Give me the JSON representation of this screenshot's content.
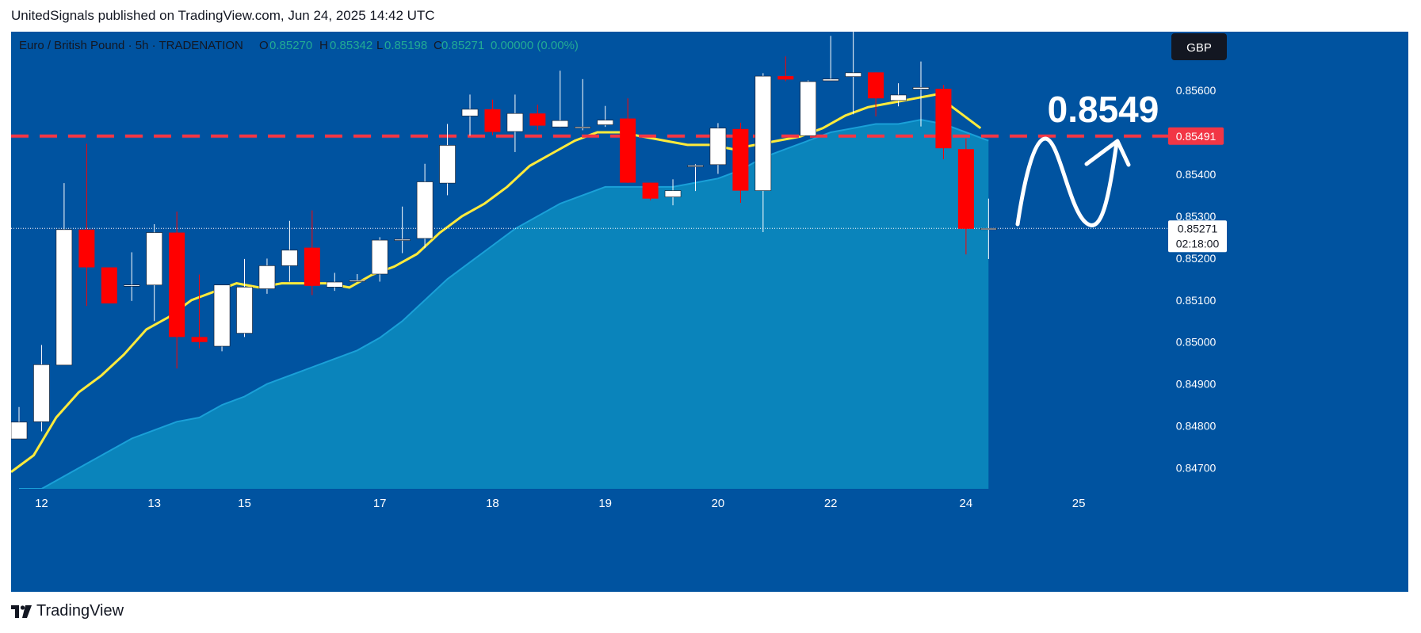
{
  "header": {
    "published_text": "UnitedSignals published on TradingView.com, Jun 24, 2025 14:42 UTC"
  },
  "legend": {
    "symbol_text": "Euro / British Pound · 5h · TRADENATION",
    "o_label": "O",
    "o_value": "0.85270",
    "h_label": "H",
    "h_value": "0.85342",
    "l_label": "L",
    "l_value": "0.85198",
    "c_label": "C",
    "c_value": "0.85271",
    "change": "0.00000 (0.00%)"
  },
  "currency_button": "GBP",
  "annotation_text": "0.8549",
  "level_label": "0.85491",
  "last_price_label": "0.85271",
  "countdown_label": "02:18:00",
  "footer": {
    "brand": "TradingView"
  },
  "colors": {
    "background": "#0053a0",
    "area_fill": "#0a84bb",
    "up_candle": "#ffffff",
    "down_candle": "#ff0000",
    "ema": "#ffeb3b",
    "level_line": "#f23645",
    "axis_text": "#ffffff"
  },
  "chart_data": {
    "type": "candlestick",
    "symbol": "Euro / British Pound",
    "interval": "5h",
    "ylim": [
      0.8465,
      0.8574
    ],
    "y_ticks": [
      "0.85600",
      "0.85500",
      "0.85400",
      "0.85300",
      "0.85200",
      "0.85100",
      "0.85000",
      "0.84900",
      "0.84800",
      "0.84700"
    ],
    "x_labels": [
      "12",
      "13",
      "15",
      "17",
      "18",
      "19",
      "20",
      "22",
      "24",
      "25"
    ],
    "horizontal_level": 0.85491,
    "last_price": 0.85271,
    "candles": [
      {
        "o": 0.84769,
        "h": 0.84845,
        "l": 0.84769,
        "c": 0.84809
      },
      {
        "o": 0.8481,
        "h": 0.84993,
        "l": 0.84787,
        "c": 0.84946
      },
      {
        "o": 0.84945,
        "h": 0.85379,
        "l": 0.84945,
        "c": 0.85268
      },
      {
        "o": 0.85268,
        "h": 0.85473,
        "l": 0.85086,
        "c": 0.85178
      },
      {
        "o": 0.85178,
        "h": 0.85178,
        "l": 0.85092,
        "c": 0.85092
      },
      {
        "o": 0.85136,
        "h": 0.85214,
        "l": 0.85098,
        "c": 0.85136
      },
      {
        "o": 0.85136,
        "h": 0.85281,
        "l": 0.8505,
        "c": 0.85261
      },
      {
        "o": 0.85261,
        "h": 0.85311,
        "l": 0.84937,
        "c": 0.85012
      },
      {
        "o": 0.85012,
        "h": 0.85161,
        "l": 0.84985,
        "c": 0.85
      },
      {
        "o": 0.8499,
        "h": 0.85135,
        "l": 0.84978,
        "c": 0.85136
      },
      {
        "o": 0.85021,
        "h": 0.85198,
        "l": 0.85012,
        "c": 0.85131
      },
      {
        "o": 0.85127,
        "h": 0.85199,
        "l": 0.85115,
        "c": 0.85182
      },
      {
        "o": 0.85182,
        "h": 0.85289,
        "l": 0.85144,
        "c": 0.85219
      },
      {
        "o": 0.85225,
        "h": 0.85314,
        "l": 0.85112,
        "c": 0.85134
      },
      {
        "o": 0.85131,
        "h": 0.85165,
        "l": 0.85122,
        "c": 0.85143
      },
      {
        "o": 0.85147,
        "h": 0.85162,
        "l": 0.85144,
        "c": 0.85147
      },
      {
        "o": 0.85162,
        "h": 0.8525,
        "l": 0.85144,
        "c": 0.85243
      },
      {
        "o": 0.85245,
        "h": 0.85323,
        "l": 0.85212,
        "c": 0.85245
      },
      {
        "o": 0.85247,
        "h": 0.85425,
        "l": 0.85224,
        "c": 0.85382
      },
      {
        "o": 0.85379,
        "h": 0.8552,
        "l": 0.8535,
        "c": 0.85469
      },
      {
        "o": 0.85539,
        "h": 0.8559,
        "l": 0.85492,
        "c": 0.85555
      },
      {
        "o": 0.85555,
        "h": 0.85578,
        "l": 0.85493,
        "c": 0.85501
      },
      {
        "o": 0.85502,
        "h": 0.8559,
        "l": 0.85453,
        "c": 0.85545
      },
      {
        "o": 0.85545,
        "h": 0.85566,
        "l": 0.85505,
        "c": 0.85516
      },
      {
        "o": 0.85513,
        "h": 0.85647,
        "l": 0.85512,
        "c": 0.85528
      },
      {
        "o": 0.85513,
        "h": 0.85627,
        "l": 0.85505,
        "c": 0.85513
      },
      {
        "o": 0.85518,
        "h": 0.85563,
        "l": 0.85513,
        "c": 0.85529
      },
      {
        "o": 0.85533,
        "h": 0.85581,
        "l": 0.85379,
        "c": 0.8538
      },
      {
        "o": 0.8538,
        "h": 0.8538,
        "l": 0.85338,
        "c": 0.85342
      },
      {
        "o": 0.85346,
        "h": 0.85388,
        "l": 0.85326,
        "c": 0.85361
      },
      {
        "o": 0.85421,
        "h": 0.85424,
        "l": 0.8536,
        "c": 0.85421
      },
      {
        "o": 0.85423,
        "h": 0.85522,
        "l": 0.85401,
        "c": 0.8551
      },
      {
        "o": 0.85508,
        "h": 0.85523,
        "l": 0.85332,
        "c": 0.85361
      },
      {
        "o": 0.85361,
        "h": 0.85641,
        "l": 0.85262,
        "c": 0.85634
      },
      {
        "o": 0.85634,
        "h": 0.85681,
        "l": 0.85622,
        "c": 0.85626
      },
      {
        "o": 0.85492,
        "h": 0.85624,
        "l": 0.85492,
        "c": 0.85621
      },
      {
        "o": 0.85623,
        "h": 0.8573,
        "l": 0.85623,
        "c": 0.85627
      },
      {
        "o": 0.85633,
        "h": 0.85754,
        "l": 0.85543,
        "c": 0.85642
      },
      {
        "o": 0.85643,
        "h": 0.85643,
        "l": 0.85538,
        "c": 0.85581
      },
      {
        "o": 0.85576,
        "h": 0.85617,
        "l": 0.85562,
        "c": 0.85589
      },
      {
        "o": 0.85603,
        "h": 0.85669,
        "l": 0.85514,
        "c": 0.85607
      },
      {
        "o": 0.85604,
        "h": 0.85613,
        "l": 0.85436,
        "c": 0.85462
      },
      {
        "o": 0.8546,
        "h": 0.85485,
        "l": 0.85209,
        "c": 0.8527
      },
      {
        "o": 0.8527,
        "h": 0.85342,
        "l": 0.85198,
        "c": 0.85271
      }
    ],
    "ema_line": [
      0.8469,
      0.8473,
      0.8482,
      0.8488,
      0.8492,
      0.8497,
      0.8503,
      0.8506,
      0.851,
      0.8512,
      0.8514,
      0.8513,
      0.8514,
      0.8514,
      0.8514,
      0.8513,
      0.8516,
      0.8518,
      0.8521,
      0.8526,
      0.853,
      0.8533,
      0.8537,
      0.8542,
      0.8545,
      0.8548,
      0.855,
      0.855,
      0.8549,
      0.8548,
      0.8547,
      0.8547,
      0.8546,
      0.8547,
      0.8548,
      0.8549,
      0.8551,
      0.8554,
      0.8556,
      0.8557,
      0.8558,
      0.8559,
      0.8555,
      0.8551
    ],
    "area_line": [
      0.8465,
      0.8465,
      0.8468,
      0.8471,
      0.8474,
      0.8477,
      0.8479,
      0.8481,
      0.8482,
      0.8485,
      0.8487,
      0.849,
      0.8492,
      0.8494,
      0.8496,
      0.8498,
      0.8501,
      0.8505,
      0.851,
      0.8515,
      0.8519,
      0.8523,
      0.8527,
      0.853,
      0.8533,
      0.8535,
      0.8537,
      0.8537,
      0.8537,
      0.8537,
      0.8538,
      0.8539,
      0.8541,
      0.8544,
      0.8546,
      0.8548,
      0.855,
      0.8551,
      0.8552,
      0.8552,
      0.8553,
      0.8552,
      0.855,
      0.8548
    ]
  }
}
